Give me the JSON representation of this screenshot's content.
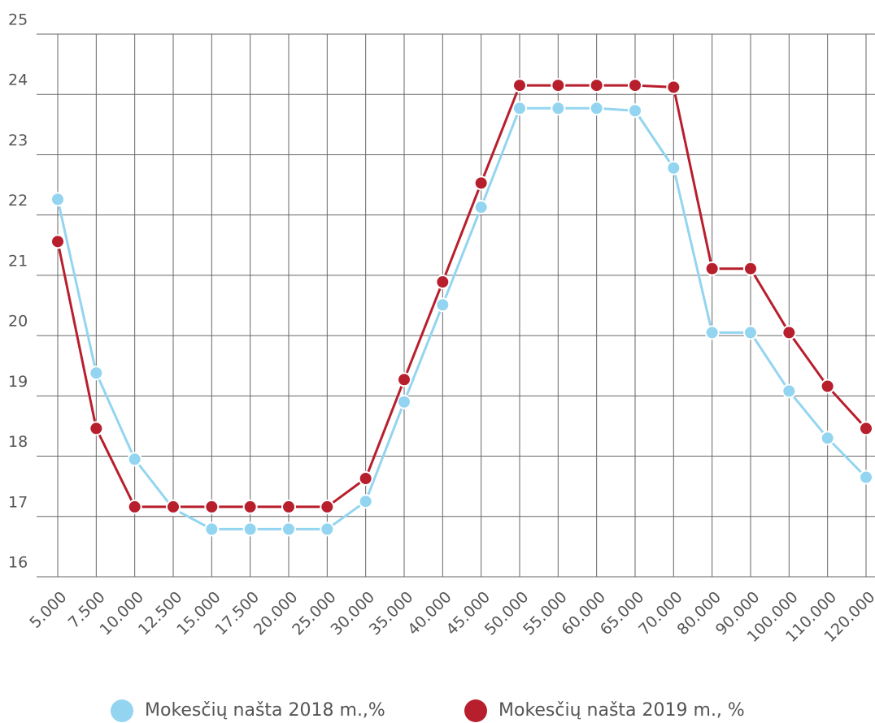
{
  "chart_data": {
    "type": "line",
    "categories": [
      "5.000",
      "7.500",
      "10.000",
      "12.500",
      "15.000",
      "17.500",
      "20.000",
      "25.000",
      "30.000",
      "35.000",
      "40.000",
      "45.000",
      "50.000",
      "55.000",
      "60.000",
      "65.000",
      "70.000",
      "80.000",
      "90.000",
      "100.000",
      "110.000",
      "120.000"
    ],
    "series": [
      {
        "name": "Mokesčių našta 2018 m.,%",
        "color": "#93d5f0",
        "values": [
          22.26,
          19.38,
          17.95,
          17.13,
          16.79,
          16.79,
          16.79,
          16.79,
          17.25,
          18.9,
          20.51,
          22.13,
          23.77,
          23.77,
          23.77,
          23.73,
          22.78,
          20.05,
          20.05,
          19.08,
          18.3,
          17.65
        ]
      },
      {
        "name": "Mokesčių našta 2019 m., %",
        "color": "#b81f2d",
        "values": [
          21.56,
          18.46,
          17.16,
          17.16,
          17.16,
          17.16,
          17.16,
          17.16,
          17.63,
          19.27,
          20.89,
          22.53,
          24.15,
          24.15,
          24.15,
          24.15,
          24.12,
          21.11,
          21.11,
          20.05,
          19.16,
          18.46
        ]
      }
    ],
    "ylim": [
      16,
      25
    ],
    "yticks": [
      16,
      17,
      18,
      19,
      20,
      21,
      22,
      23,
      24,
      25
    ],
    "grid": true
  }
}
